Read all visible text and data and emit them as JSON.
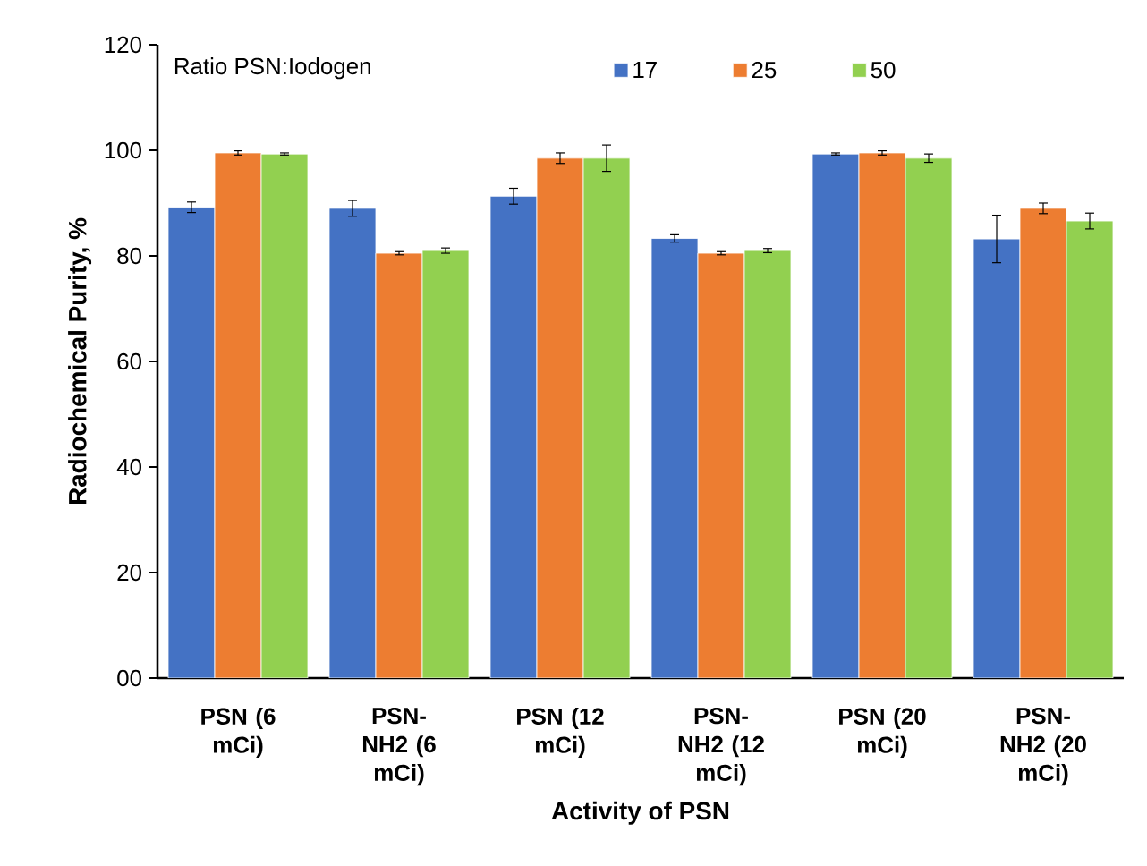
{
  "chart_data": {
    "type": "bar",
    "xlabel": "Activity of PSN",
    "ylabel": "Radiochemical Purity, %",
    "legend_title": "Ratio PSN:Iodogen",
    "categories": [
      "PSN (6 mCi)",
      "PSN-NH2 (6 mCi)",
      "PSN (12 mCi)",
      "PSN-NH2 (12 mCi)",
      "PSN (20 mCi)",
      "PSN-NH2 (20 mCi)"
    ],
    "series": [
      {
        "name": "17",
        "color": "#4472c4",
        "values": [
          89.2,
          89,
          91.3,
          83.3,
          99.3,
          83.2
        ],
        "errors": [
          1,
          1.5,
          1.5,
          0.7,
          0.2,
          4.5
        ]
      },
      {
        "name": "25",
        "color": "#ed7d31",
        "values": [
          99.5,
          80.5,
          98.5,
          80.5,
          99.5,
          89
        ],
        "errors": [
          0.4,
          0.3,
          1,
          0.3,
          0.4,
          1
        ]
      },
      {
        "name": "50",
        "color": "#92d050",
        "values": [
          99.3,
          81,
          98.5,
          81,
          98.5,
          86.6
        ],
        "errors": [
          0.2,
          0.5,
          2.5,
          0.4,
          0.8,
          1.5
        ]
      }
    ],
    "ylim": [
      0,
      120
    ],
    "yticks": [
      {
        "value": 0,
        "label": "00"
      },
      20,
      40,
      60,
      80,
      100,
      120
    ],
    "grid": false,
    "legend": "top"
  }
}
